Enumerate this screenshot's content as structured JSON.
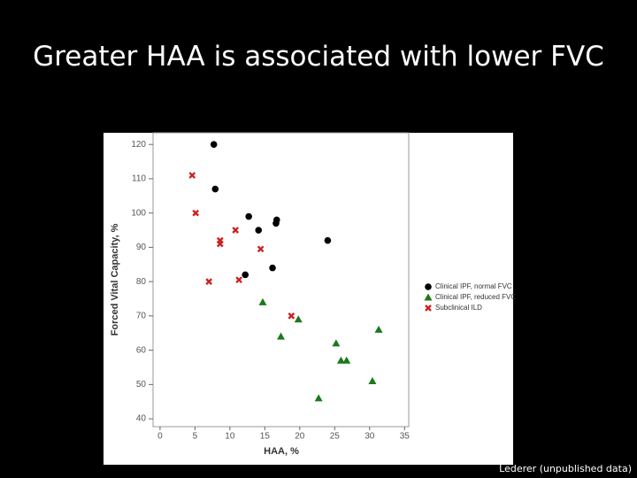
{
  "chart_data": {
    "type": "scatter",
    "title": "Greater HAA is associated with lower FVC",
    "x_label": "HAA, %",
    "y_label": "Forced Vital Capacity, %",
    "source": "Lederer (unpublished data)",
    "xlim": [
      -1,
      35.6
    ],
    "ylim": [
      37.7,
      123.4
    ],
    "xticks": [
      0,
      5,
      10,
      15,
      20,
      25,
      30,
      35
    ],
    "yticks": [
      40,
      50,
      60,
      70,
      80,
      90,
      100,
      110,
      120
    ],
    "series": [
      {
        "name": "Clinical IPF, normal FVC",
        "color": "#000000",
        "marker": "circle",
        "x": [
          7.7,
          7.9,
          12.7,
          14.1,
          16.6,
          16.7,
          12.2,
          16.1,
          24.0
        ],
        "values": [
          120,
          107,
          99,
          95,
          97,
          98,
          82,
          84,
          92
        ]
      },
      {
        "name": "Clinical IPF, reduced FVC",
        "color": "#1a7a1a",
        "marker": "triangle",
        "x": [
          14.7,
          17.3,
          19.8,
          22.7,
          25.2,
          25.9,
          26.7,
          30.4,
          31.3
        ],
        "values": [
          74,
          64,
          69,
          46,
          62,
          57,
          57,
          51,
          66
        ]
      },
      {
        "name": "Subclinical ILD",
        "color": "#cc2222",
        "marker": "x",
        "x": [
          4.6,
          5.1,
          8.6,
          8.6,
          10.8,
          14.4,
          7.0,
          11.3,
          18.8
        ],
        "values": [
          111,
          100,
          92,
          91,
          95,
          89.5,
          80,
          80.5,
          70
        ]
      }
    ]
  }
}
